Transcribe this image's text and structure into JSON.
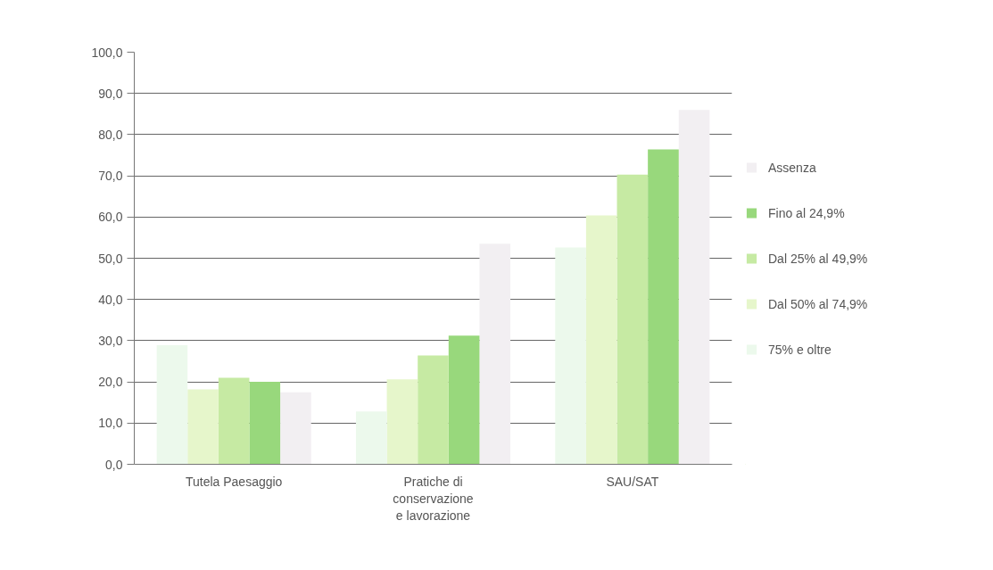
{
  "chart_data": {
    "type": "bar",
    "categories": [
      "Tutela Paesaggio",
      "Pratiche di\nconservazione\ne lavorazione",
      "SAU/SAT"
    ],
    "series": [
      {
        "name": "Assenza",
        "color": "#f2eff2",
        "values": [
          17.5,
          53.5,
          86.0
        ]
      },
      {
        "name": "Fino al 24,9%",
        "color": "#98d87c",
        "values": [
          20.0,
          31.2,
          76.4
        ]
      },
      {
        "name": "Dal 25% al 49,9%",
        "color": "#c6eaa3",
        "values": [
          21.0,
          26.4,
          70.3
        ]
      },
      {
        "name": "Dal 50% al 74,9%",
        "color": "#e6f6cb",
        "values": [
          18.2,
          20.6,
          60.4
        ]
      },
      {
        "name": "75% e oltre",
        "color": "#ecf9ec",
        "values": [
          28.9,
          12.8,
          52.6
        ]
      }
    ],
    "ylim": [
      0,
      100
    ],
    "yticks": [
      {
        "value": 0,
        "label": "0,0"
      },
      {
        "value": 10,
        "label": "10,0"
      },
      {
        "value": 20,
        "label": "20,0"
      },
      {
        "value": 30,
        "label": "30,0"
      },
      {
        "value": 40,
        "label": "40,0"
      },
      {
        "value": 50,
        "label": "50,0"
      },
      {
        "value": 60,
        "label": "60,0"
      },
      {
        "value": 70,
        "label": "70,0"
      },
      {
        "value": 80,
        "label": "80,0"
      },
      {
        "value": 90,
        "label": "90,0"
      },
      {
        "value": 100,
        "label": "100,0"
      }
    ],
    "grid": "y",
    "legend": "right"
  }
}
